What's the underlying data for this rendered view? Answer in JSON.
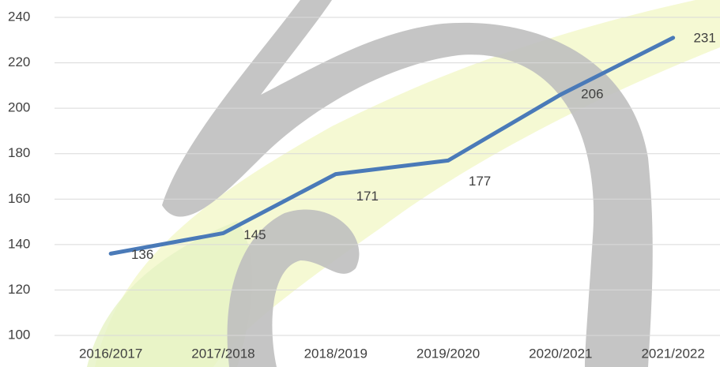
{
  "chart_data": {
    "type": "line",
    "categories": [
      "2016/2017",
      "2017/2018",
      "2018/2019",
      "2019/2020",
      "2020/2021",
      "2021/2022"
    ],
    "values": [
      136,
      145,
      171,
      177,
      206,
      231
    ],
    "color": "#4a7ab8",
    "ylim": [
      100,
      240
    ],
    "yticks": [
      100,
      120,
      140,
      160,
      180,
      200,
      220,
      240
    ],
    "grid": true
  }
}
